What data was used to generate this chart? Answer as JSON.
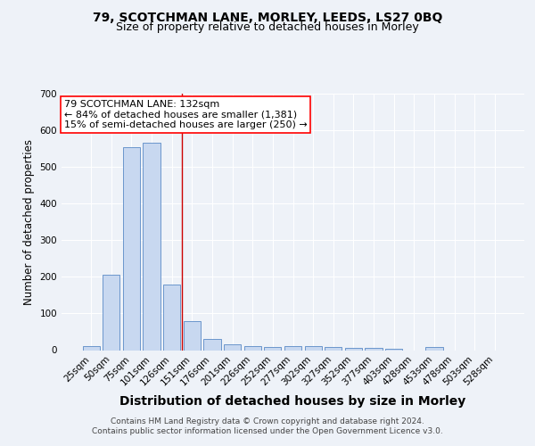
{
  "title1": "79, SCOTCHMAN LANE, MORLEY, LEEDS, LS27 0BQ",
  "title2": "Size of property relative to detached houses in Morley",
  "xlabel": "Distribution of detached houses by size in Morley",
  "ylabel": "Number of detached properties",
  "categories": [
    "25sqm",
    "50sqm",
    "75sqm",
    "101sqm",
    "126sqm",
    "151sqm",
    "176sqm",
    "201sqm",
    "226sqm",
    "252sqm",
    "277sqm",
    "302sqm",
    "327sqm",
    "352sqm",
    "377sqm",
    "403sqm",
    "428sqm",
    "453sqm",
    "478sqm",
    "503sqm",
    "528sqm"
  ],
  "values": [
    12,
    205,
    555,
    565,
    180,
    80,
    30,
    15,
    12,
    8,
    10,
    10,
    8,
    5,
    5,
    3,
    0,
    8,
    0,
    0,
    0
  ],
  "bar_color": "#c8d8f0",
  "bar_edge_color": "#5a8ac6",
  "red_line_x": 4.5,
  "annotation_line1": "79 SCOTCHMAN LANE: 132sqm",
  "annotation_line2": "← 84% of detached houses are smaller (1,381)",
  "annotation_line3": "15% of semi-detached houses are larger (250) →",
  "annotation_box_color": "white",
  "annotation_box_edge_color": "red",
  "ylim": [
    0,
    700
  ],
  "yticks": [
    0,
    100,
    200,
    300,
    400,
    500,
    600,
    700
  ],
  "footer_text": "Contains HM Land Registry data © Crown copyright and database right 2024.\nContains public sector information licensed under the Open Government Licence v3.0.",
  "background_color": "#eef2f8",
  "grid_color": "#ffffff",
  "title1_fontsize": 10,
  "title2_fontsize": 9,
  "xlabel_fontsize": 10,
  "ylabel_fontsize": 8.5,
  "tick_fontsize": 7.5,
  "annotation_fontsize": 8,
  "footer_fontsize": 6.5
}
